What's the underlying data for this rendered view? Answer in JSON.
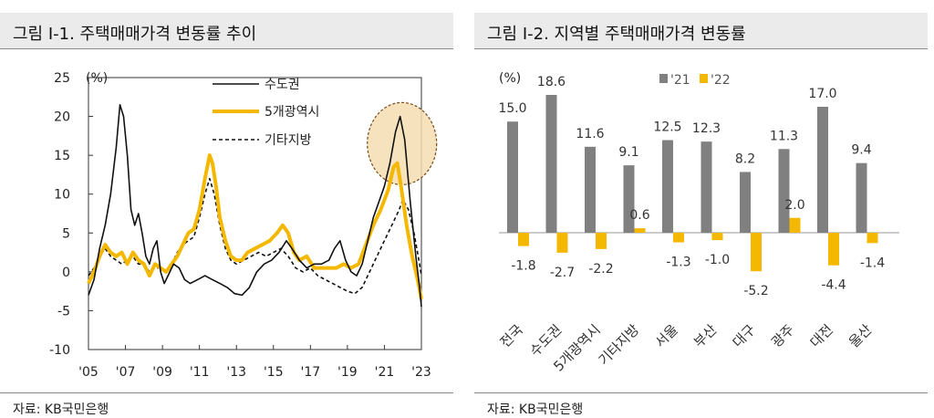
{
  "chart_data": [
    {
      "type": "line",
      "title": "그림 Ⅰ-1. 주택매매가격 변동률 추이",
      "source": "자료: KB국민은행",
      "unit": "(%)",
      "ylim": [
        -10,
        25
      ],
      "yticks": [
        "25",
        "20",
        "15",
        "10",
        "5",
        "0",
        "-5",
        "-10"
      ],
      "xlim": [
        2005,
        2023
      ],
      "xticks": [
        "'05",
        "'07",
        "'09",
        "'11",
        "'13",
        "'15",
        "'17",
        "'19",
        "'21",
        "'23"
      ],
      "legend_position": "top-right",
      "highlight": {
        "label_color": "#f5deb3",
        "note": ""
      },
      "series": [
        {
          "name": "수도권",
          "color": "#111111",
          "style": "solid",
          "points": [
            [
              2005.0,
              -3
            ],
            [
              2005.3,
              -1
            ],
            [
              2005.6,
              3
            ],
            [
              2005.9,
              6
            ],
            [
              2006.2,
              10
            ],
            [
              2006.5,
              16
            ],
            [
              2006.7,
              21.5
            ],
            [
              2006.9,
              20
            ],
            [
              2007.1,
              15
            ],
            [
              2007.3,
              8
            ],
            [
              2007.5,
              6
            ],
            [
              2007.7,
              7.5
            ],
            [
              2007.9,
              5
            ],
            [
              2008.1,
              2
            ],
            [
              2008.3,
              1
            ],
            [
              2008.5,
              3
            ],
            [
              2008.7,
              4
            ],
            [
              2008.9,
              0
            ],
            [
              2009.1,
              -1.5
            ],
            [
              2009.3,
              -0.5
            ],
            [
              2009.6,
              1
            ],
            [
              2009.9,
              0.5
            ],
            [
              2010.2,
              -1
            ],
            [
              2010.5,
              -1.5
            ],
            [
              2010.9,
              -1
            ],
            [
              2011.3,
              -0.5
            ],
            [
              2011.7,
              -1
            ],
            [
              2012.1,
              -1.5
            ],
            [
              2012.5,
              -2
            ],
            [
              2012.9,
              -2.8
            ],
            [
              2013.3,
              -3
            ],
            [
              2013.7,
              -2
            ],
            [
              2014.1,
              0
            ],
            [
              2014.5,
              1
            ],
            [
              2014.9,
              1.5
            ],
            [
              2015.3,
              2.5
            ],
            [
              2015.7,
              4
            ],
            [
              2016.0,
              3
            ],
            [
              2016.4,
              1.5
            ],
            [
              2016.8,
              0.5
            ],
            [
              2017.2,
              1
            ],
            [
              2017.6,
              1
            ],
            [
              2018.0,
              1.5
            ],
            [
              2018.3,
              3
            ],
            [
              2018.6,
              4
            ],
            [
              2018.9,
              1.5
            ],
            [
              2019.2,
              0
            ],
            [
              2019.5,
              -0.5
            ],
            [
              2019.8,
              1
            ],
            [
              2020.1,
              4
            ],
            [
              2020.4,
              7
            ],
            [
              2020.7,
              9
            ],
            [
              2021.0,
              11
            ],
            [
              2021.3,
              14
            ],
            [
              2021.6,
              18
            ],
            [
              2021.85,
              20
            ],
            [
              2022.1,
              17
            ],
            [
              2022.4,
              9
            ],
            [
              2022.7,
              2
            ],
            [
              2022.9,
              -2
            ],
            [
              2023.0,
              -4.5
            ]
          ]
        },
        {
          "name": "5개광역시",
          "color": "#f5b800",
          "style": "solid",
          "points": [
            [
              2005.0,
              -1.5
            ],
            [
              2005.3,
              0
            ],
            [
              2005.6,
              2
            ],
            [
              2005.9,
              3.5
            ],
            [
              2006.2,
              2.5
            ],
            [
              2006.5,
              2
            ],
            [
              2006.8,
              2.5
            ],
            [
              2007.1,
              1
            ],
            [
              2007.4,
              2.5
            ],
            [
              2007.7,
              1.5
            ],
            [
              2008.0,
              1
            ],
            [
              2008.3,
              -0.5
            ],
            [
              2008.6,
              1
            ],
            [
              2008.9,
              0.5
            ],
            [
              2009.2,
              0
            ],
            [
              2009.5,
              1
            ],
            [
              2009.8,
              2
            ],
            [
              2010.1,
              3.5
            ],
            [
              2010.4,
              5
            ],
            [
              2010.7,
              5.5
            ],
            [
              2011.0,
              8
            ],
            [
              2011.3,
              12
            ],
            [
              2011.55,
              15
            ],
            [
              2011.7,
              14
            ],
            [
              2011.9,
              11
            ],
            [
              2012.1,
              7
            ],
            [
              2012.4,
              4
            ],
            [
              2012.7,
              2
            ],
            [
              2013.0,
              1.5
            ],
            [
              2013.3,
              1.5
            ],
            [
              2013.6,
              2.5
            ],
            [
              2014.0,
              3
            ],
            [
              2014.4,
              3.5
            ],
            [
              2014.8,
              4
            ],
            [
              2015.2,
              5
            ],
            [
              2015.5,
              6
            ],
            [
              2015.8,
              5
            ],
            [
              2016.1,
              2.5
            ],
            [
              2016.4,
              1.5
            ],
            [
              2016.8,
              2
            ],
            [
              2017.2,
              0.5
            ],
            [
              2017.6,
              0.5
            ],
            [
              2018.0,
              0.5
            ],
            [
              2018.4,
              0.5
            ],
            [
              2018.8,
              1
            ],
            [
              2019.2,
              0.5
            ],
            [
              2019.6,
              1
            ],
            [
              2020.0,
              3.5
            ],
            [
              2020.4,
              6
            ],
            [
              2020.8,
              8
            ],
            [
              2021.2,
              10.5
            ],
            [
              2021.5,
              13.5
            ],
            [
              2021.7,
              14
            ],
            [
              2021.9,
              11
            ],
            [
              2022.2,
              6
            ],
            [
              2022.5,
              2
            ],
            [
              2022.8,
              -1
            ],
            [
              2023.0,
              -3.5
            ]
          ]
        },
        {
          "name": "기타지방",
          "color": "#111111",
          "style": "dashed",
          "points": [
            [
              2005.0,
              -0.5
            ],
            [
              2005.3,
              0.5
            ],
            [
              2005.6,
              2
            ],
            [
              2005.9,
              3
            ],
            [
              2006.2,
              2
            ],
            [
              2006.5,
              1.5
            ],
            [
              2006.8,
              1
            ],
            [
              2007.1,
              1.5
            ],
            [
              2007.4,
              2
            ],
            [
              2007.7,
              1
            ],
            [
              2008.0,
              1
            ],
            [
              2008.3,
              0
            ],
            [
              2008.6,
              0.5
            ],
            [
              2008.9,
              0.5
            ],
            [
              2009.2,
              0
            ],
            [
              2009.5,
              1
            ],
            [
              2009.8,
              2.5
            ],
            [
              2010.1,
              3.5
            ],
            [
              2010.4,
              4
            ],
            [
              2010.7,
              4.5
            ],
            [
              2011.0,
              7
            ],
            [
              2011.3,
              10
            ],
            [
              2011.55,
              12
            ],
            [
              2011.8,
              10
            ],
            [
              2012.1,
              6
            ],
            [
              2012.4,
              3
            ],
            [
              2012.7,
              1.5
            ],
            [
              2013.0,
              1
            ],
            [
              2013.4,
              1.5
            ],
            [
              2013.8,
              2
            ],
            [
              2014.2,
              2.5
            ],
            [
              2014.6,
              2
            ],
            [
              2015.0,
              2.5
            ],
            [
              2015.4,
              3
            ],
            [
              2015.8,
              2
            ],
            [
              2016.2,
              0.5
            ],
            [
              2016.6,
              0
            ],
            [
              2017.0,
              0.5
            ],
            [
              2017.4,
              -0.5
            ],
            [
              2017.8,
              -1
            ],
            [
              2018.2,
              -1.5
            ],
            [
              2018.6,
              -2
            ],
            [
              2019.0,
              -2.5
            ],
            [
              2019.4,
              -2.8
            ],
            [
              2019.8,
              -2
            ],
            [
              2020.2,
              0
            ],
            [
              2020.6,
              2
            ],
            [
              2021.0,
              4
            ],
            [
              2021.4,
              6
            ],
            [
              2021.8,
              8
            ],
            [
              2022.0,
              9.3
            ],
            [
              2022.3,
              8
            ],
            [
              2022.6,
              5
            ],
            [
              2022.9,
              1
            ],
            [
              2023.0,
              -0.5
            ]
          ]
        }
      ]
    },
    {
      "type": "bar",
      "title": "그림 Ⅰ-2. 지역별 주택매매가격 변동률",
      "source": "자료: KB국민은행",
      "unit": "(%)",
      "ylim": [
        -6,
        20
      ],
      "categories": [
        "전국",
        "수도권",
        "5개광역시",
        "기타지방",
        "서울",
        "부산",
        "대구",
        "광주",
        "대전",
        "울산"
      ],
      "series": [
        {
          "name": "'21",
          "color": "#808080",
          "values": [
            15.0,
            18.6,
            11.6,
            9.1,
            12.5,
            12.3,
            8.2,
            11.3,
            17.0,
            9.4
          ],
          "labels": [
            "15.0",
            "18.6",
            "11.6",
            "9.1",
            "12.5",
            "12.3",
            "8.2",
            "11.3",
            "17.0",
            "9.4"
          ]
        },
        {
          "name": "'22",
          "color": "#f5b800",
          "values": [
            -1.8,
            -2.7,
            -2.2,
            0.6,
            -1.3,
            -1.0,
            -5.2,
            2.0,
            -4.4,
            -1.4
          ],
          "labels": [
            "-1.8",
            "-2.7",
            "-2.2",
            "0.6",
            "-1.3",
            "-1.0",
            "-5.2",
            "2.0",
            "-4.4",
            "-1.4"
          ]
        }
      ],
      "legend_position": "top-center"
    }
  ]
}
